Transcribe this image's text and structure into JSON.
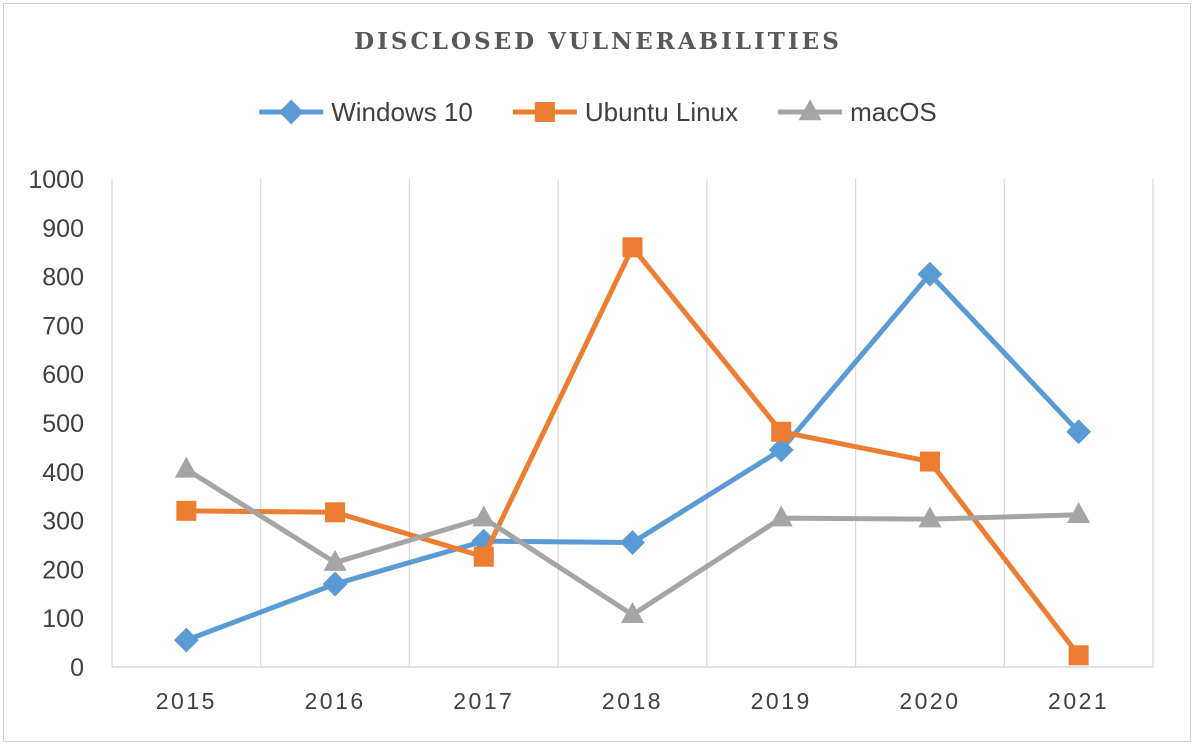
{
  "chart_data": {
    "type": "line",
    "title": "DISCLOSED VULNERABILITIES",
    "xlabel": "",
    "ylabel": "",
    "categories": [
      "2015",
      "2016",
      "2017",
      "2018",
      "2019",
      "2020",
      "2021"
    ],
    "ylim": [
      0,
      1000
    ],
    "yticks": [
      0,
      100,
      200,
      300,
      400,
      500,
      600,
      700,
      800,
      900,
      1000
    ],
    "grid": "vertical",
    "legend_position": "top",
    "series": [
      {
        "name": "Windows 10",
        "values": [
          55,
          170,
          258,
          255,
          445,
          805,
          482
        ],
        "color": "#5b9bd5",
        "marker": "diamond"
      },
      {
        "name": "Ubuntu Linux",
        "values": [
          320,
          317,
          226,
          860,
          482,
          421,
          24
        ],
        "color": "#ed7d31",
        "marker": "square"
      },
      {
        "name": "macOS",
        "values": [
          405,
          214,
          305,
          107,
          305,
          303,
          312
        ],
        "color": "#a5a5a5",
        "marker": "triangle"
      }
    ]
  }
}
